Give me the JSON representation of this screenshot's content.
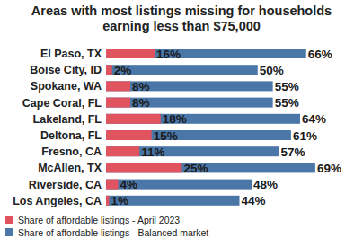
{
  "chart_data": {
    "type": "bar",
    "orientation": "horizontal",
    "title": "Areas with most listings missing for households earning less than $75,000",
    "categories": [
      "El Paso, TX",
      "Boise City, ID",
      "Spokane, WA",
      "Cape Coral, FL",
      "Lakeland, FL",
      "Deltona, FL",
      "Fresno, CA",
      "McAllen, TX",
      "Riverside, CA",
      "Los Angeles, CA"
    ],
    "series": [
      {
        "name": "Share of affordable listings - April 2023",
        "color": "#e0545f",
        "values": [
          16,
          2,
          8,
          8,
          18,
          15,
          11,
          25,
          4,
          1
        ],
        "value_labels": [
          "16%",
          "2%",
          "8%",
          "8%",
          "18%",
          "15%",
          "11%",
          "25%",
          "4%",
          "1%"
        ]
      },
      {
        "name": "Share of affordable listings - Balanced market",
        "color": "#4a76a8",
        "values": [
          66,
          50,
          55,
          55,
          64,
          61,
          57,
          69,
          48,
          44
        ],
        "value_labels": [
          "66%",
          "50%",
          "55%",
          "55%",
          "64%",
          "61%",
          "57%",
          "69%",
          "48%",
          "44%"
        ]
      }
    ],
    "xlim": [
      0,
      80
    ],
    "data_labels": true,
    "tick_labels": "y",
    "legend": "bottom-left"
  }
}
